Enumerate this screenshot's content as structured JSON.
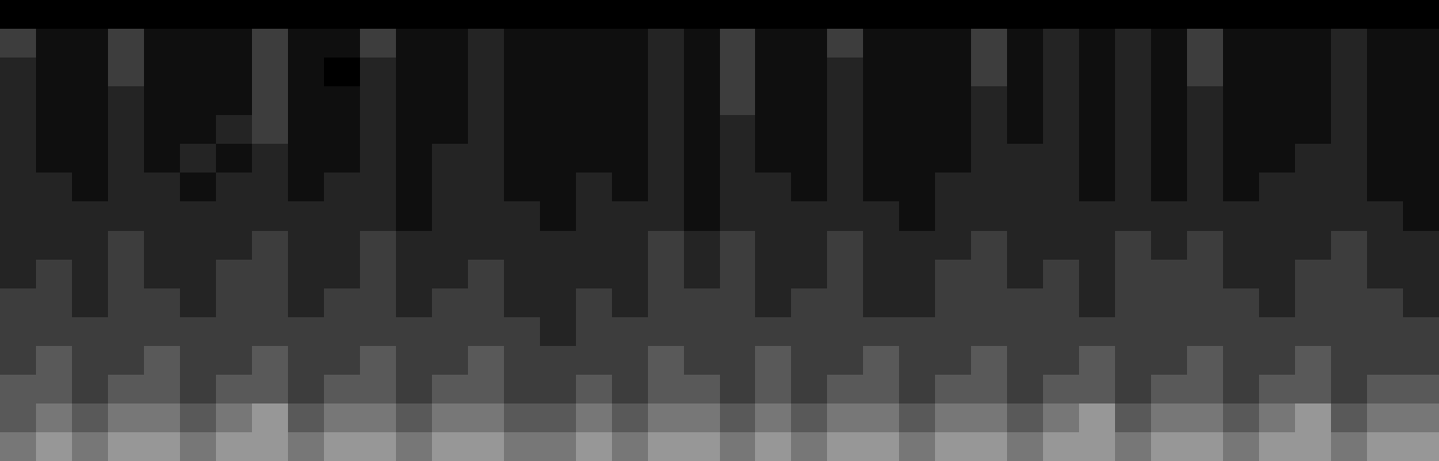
{
  "chart_data": {
    "type": "heatmap",
    "tick_labels": false,
    "zlim": [
      0,
      9
    ],
    "cells": [
      [
        0,
        0,
        0,
        0,
        0,
        0,
        0,
        0,
        0,
        0,
        0,
        0,
        0,
        0,
        0,
        0,
        0,
        0,
        0,
        0,
        0,
        0,
        0,
        0,
        0,
        0,
        0,
        0,
        0,
        0,
        0,
        0,
        0,
        0,
        0,
        0,
        0,
        0,
        0,
        0
      ],
      [
        3,
        1,
        1,
        3,
        1,
        1,
        1,
        3,
        1,
        1,
        3,
        1,
        1,
        2,
        1,
        1,
        1,
        1,
        2,
        1,
        3,
        1,
        1,
        3,
        1,
        1,
        1,
        3,
        1,
        2,
        1,
        2,
        1,
        3,
        1,
        1,
        1,
        2,
        1,
        1
      ],
      [
        2,
        1,
        1,
        3,
        1,
        1,
        1,
        3,
        1,
        0,
        2,
        1,
        1,
        2,
        1,
        1,
        1,
        1,
        2,
        1,
        3,
        1,
        1,
        2,
        1,
        1,
        1,
        3,
        1,
        2,
        1,
        2,
        1,
        3,
        1,
        1,
        1,
        2,
        1,
        1
      ],
      [
        2,
        1,
        1,
        2,
        1,
        1,
        1,
        3,
        1,
        1,
        2,
        1,
        1,
        2,
        1,
        1,
        1,
        1,
        2,
        1,
        3,
        1,
        1,
        2,
        1,
        1,
        1,
        2,
        1,
        2,
        1,
        2,
        1,
        2,
        1,
        1,
        1,
        2,
        1,
        1
      ],
      [
        2,
        1,
        1,
        2,
        1,
        1,
        2,
        3,
        1,
        1,
        2,
        1,
        1,
        2,
        1,
        1,
        1,
        1,
        2,
        1,
        2,
        1,
        1,
        2,
        1,
        1,
        1,
        2,
        1,
        2,
        1,
        2,
        1,
        2,
        1,
        1,
        1,
        2,
        1,
        1
      ],
      [
        2,
        1,
        1,
        2,
        1,
        2,
        1,
        2,
        1,
        1,
        2,
        1,
        2,
        2,
        1,
        1,
        1,
        1,
        2,
        1,
        2,
        1,
        1,
        2,
        1,
        1,
        1,
        2,
        2,
        2,
        1,
        2,
        1,
        2,
        1,
        1,
        2,
        2,
        1,
        1
      ],
      [
        2,
        2,
        1,
        2,
        2,
        1,
        2,
        2,
        1,
        2,
        2,
        1,
        2,
        2,
        1,
        1,
        2,
        1,
        2,
        1,
        2,
        2,
        1,
        2,
        1,
        1,
        2,
        2,
        2,
        2,
        1,
        2,
        1,
        2,
        1,
        2,
        2,
        2,
        1,
        1
      ],
      [
        2,
        2,
        2,
        2,
        2,
        2,
        2,
        2,
        2,
        2,
        2,
        1,
        2,
        2,
        2,
        1,
        2,
        2,
        2,
        1,
        2,
        2,
        2,
        2,
        2,
        1,
        2,
        2,
        2,
        2,
        2,
        2,
        2,
        2,
        2,
        2,
        2,
        2,
        2,
        1
      ],
      [
        2,
        2,
        2,
        3,
        2,
        2,
        2,
        3,
        2,
        2,
        3,
        2,
        2,
        2,
        2,
        2,
        2,
        2,
        3,
        2,
        3,
        2,
        2,
        3,
        2,
        2,
        2,
        3,
        2,
        2,
        2,
        3,
        2,
        3,
        2,
        2,
        2,
        3,
        2,
        2
      ],
      [
        2,
        3,
        2,
        3,
        2,
        2,
        3,
        3,
        2,
        2,
        3,
        2,
        2,
        3,
        2,
        2,
        2,
        2,
        3,
        2,
        3,
        2,
        2,
        3,
        2,
        2,
        3,
        3,
        2,
        3,
        2,
        3,
        3,
        3,
        2,
        2,
        3,
        3,
        2,
        2
      ],
      [
        3,
        3,
        2,
        3,
        3,
        2,
        3,
        3,
        2,
        3,
        3,
        2,
        3,
        3,
        2,
        2,
        3,
        2,
        3,
        3,
        3,
        2,
        3,
        3,
        2,
        2,
        3,
        3,
        3,
        3,
        2,
        3,
        3,
        3,
        3,
        2,
        3,
        3,
        3,
        2
      ],
      [
        3,
        3,
        3,
        3,
        3,
        3,
        3,
        3,
        3,
        3,
        3,
        3,
        3,
        3,
        3,
        2,
        3,
        3,
        3,
        3,
        3,
        3,
        3,
        3,
        3,
        3,
        3,
        3,
        3,
        3,
        3,
        3,
        3,
        3,
        3,
        3,
        3,
        3,
        3,
        3
      ],
      [
        3,
        4,
        3,
        3,
        4,
        3,
        3,
        4,
        3,
        3,
        4,
        3,
        3,
        4,
        3,
        3,
        3,
        3,
        4,
        3,
        3,
        4,
        3,
        3,
        4,
        3,
        3,
        4,
        3,
        3,
        4,
        3,
        3,
        4,
        3,
        3,
        4,
        3,
        3,
        3
      ],
      [
        4,
        4,
        3,
        4,
        4,
        3,
        4,
        4,
        3,
        4,
        4,
        3,
        4,
        4,
        3,
        3,
        4,
        3,
        4,
        4,
        3,
        4,
        3,
        4,
        4,
        3,
        4,
        4,
        3,
        4,
        4,
        3,
        4,
        4,
        3,
        4,
        4,
        3,
        4,
        4
      ],
      [
        4,
        5,
        4,
        5,
        5,
        4,
        5,
        6,
        4,
        5,
        5,
        4,
        5,
        5,
        4,
        4,
        5,
        4,
        5,
        5,
        4,
        5,
        4,
        5,
        5,
        4,
        5,
        5,
        4,
        5,
        6,
        4,
        5,
        5,
        4,
        5,
        6,
        4,
        5,
        5
      ],
      [
        5,
        6,
        5,
        6,
        6,
        5,
        6,
        6,
        5,
        6,
        6,
        5,
        6,
        6,
        5,
        5,
        6,
        5,
        6,
        6,
        5,
        6,
        5,
        6,
        6,
        5,
        6,
        6,
        5,
        6,
        6,
        5,
        6,
        6,
        5,
        6,
        6,
        5,
        6,
        6
      ]
    ]
  }
}
